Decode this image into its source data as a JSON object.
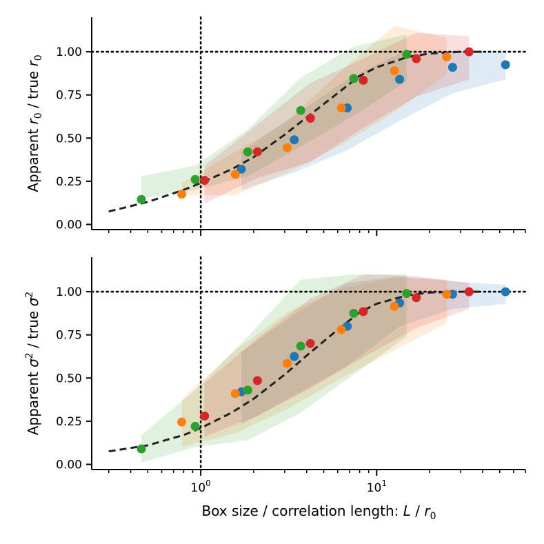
{
  "chart_data": [
    {
      "type": "scatter",
      "panel": "top",
      "xscale": "log",
      "xlim": [
        0.24,
        70
      ],
      "ylim": [
        -0.03,
        1.2
      ],
      "xlabel": "",
      "ylabel": "Apparent r₀ / true r₀",
      "ylabel_parts": {
        "pre": "Apparent ",
        "sym1": "r",
        "sub1": "0",
        "mid": " / true ",
        "sym2": "r",
        "sub2": "0"
      },
      "yticks": [
        0.0,
        0.25,
        0.5,
        0.75,
        1.0
      ],
      "ytick_labels": [
        "0.00",
        "0.25",
        "0.50",
        "0.75",
        "1.00"
      ],
      "reference_lines": {
        "vertical_x": 1.0,
        "horizontal_y": 1.0,
        "style": "dotted"
      },
      "fit_curve": {
        "style": "dashed",
        "color": "#222222",
        "points": [
          [
            0.3,
            0.075
          ],
          [
            0.5,
            0.13
          ],
          [
            0.8,
            0.2
          ],
          [
            1.0,
            0.24
          ],
          [
            1.5,
            0.32
          ],
          [
            2.0,
            0.39
          ],
          [
            3.0,
            0.52
          ],
          [
            4.0,
            0.62
          ],
          [
            6.0,
            0.76
          ],
          [
            8.0,
            0.86
          ],
          [
            10.0,
            0.91
          ],
          [
            15.0,
            0.97
          ],
          [
            20.0,
            0.99
          ],
          [
            30.0,
            1.0
          ],
          [
            40.0,
            1.0
          ]
        ]
      },
      "series": [
        {
          "name": "blue",
          "color": "#1f77b4",
          "x": [
            1.7,
            3.4,
            6.8,
            13.5,
            27.0,
            54.0
          ],
          "y": [
            0.32,
            0.49,
            0.675,
            0.84,
            0.91,
            0.925
          ],
          "band": {
            "x": [
              1.7,
              3.4,
              6.8,
              13.5,
              27.0,
              54.0
            ],
            "low": [
              0.2,
              0.3,
              0.43,
              0.6,
              0.76,
              0.84
            ],
            "high": [
              0.42,
              0.63,
              0.84,
              0.99,
              1.0,
              1.0
            ]
          }
        },
        {
          "name": "orange",
          "color": "#ff7f0e",
          "x": [
            0.78,
            1.57,
            3.1,
            6.3,
            12.6,
            25.0
          ],
          "y": [
            0.175,
            0.29,
            0.445,
            0.675,
            0.89,
            0.97
          ],
          "band": {
            "x": [
              0.78,
              1.57,
              3.1,
              6.3,
              12.6,
              25.0
            ],
            "low": [
              0.17,
              0.17,
              0.3,
              0.46,
              0.65,
              0.87
            ],
            "high": [
              0.24,
              0.42,
              0.6,
              0.89,
              1.15,
              1.08
            ]
          }
        },
        {
          "name": "green",
          "color": "#2ca02c",
          "x": [
            0.46,
            0.93,
            1.85,
            3.7,
            7.4,
            14.8
          ],
          "y": [
            0.145,
            0.26,
            0.42,
            0.66,
            0.845,
            0.985
          ],
          "band": {
            "x": [
              0.46,
              0.93,
              1.85,
              3.7,
              7.4,
              14.8
            ],
            "low": [
              0.15,
              0.2,
              0.28,
              0.45,
              0.63,
              0.83
            ],
            "high": [
              0.28,
              0.34,
              0.55,
              0.85,
              1.03,
              1.1
            ]
          }
        },
        {
          "name": "red",
          "color": "#d62728",
          "x": [
            1.05,
            2.1,
            4.2,
            8.4,
            16.8,
            33.5
          ],
          "y": [
            0.255,
            0.42,
            0.615,
            0.835,
            0.96,
            1.0
          ],
          "band": {
            "x": [
              1.05,
              2.1,
              4.2,
              8.4,
              16.8,
              33.5
            ],
            "low": [
              0.12,
              0.27,
              0.36,
              0.56,
              0.74,
              0.84
            ],
            "high": [
              0.34,
              0.58,
              0.82,
              0.96,
              1.11,
              1.09
            ]
          }
        }
      ]
    },
    {
      "type": "scatter",
      "panel": "bottom",
      "xscale": "log",
      "xlim": [
        0.24,
        70
      ],
      "ylim": [
        -0.03,
        1.2
      ],
      "xlabel": "Box size / correlation length: L / r₀",
      "xlabel_parts": {
        "pre": "Box size / correlation length: ",
        "sym1": "L",
        "mid": " / ",
        "sym2": "r",
        "sub2": "0"
      },
      "ylabel": "Apparent σ² / true σ²",
      "ylabel_parts": {
        "pre": "Apparent ",
        "sym1": "σ",
        "sup1": "2",
        "mid": " / true ",
        "sym2": "σ",
        "sup2": "2"
      },
      "xticks": [
        1,
        10
      ],
      "xtick_labels": [
        {
          "base": "10",
          "exp": "0"
        },
        {
          "base": "10",
          "exp": "1"
        }
      ],
      "yticks": [
        0.0,
        0.25,
        0.5,
        0.75,
        1.0
      ],
      "ytick_labels": [
        "0.00",
        "0.25",
        "0.50",
        "0.75",
        "1.00"
      ],
      "reference_lines": {
        "vertical_x": 1.0,
        "horizontal_y": 1.0,
        "style": "dotted"
      },
      "fit_curve": {
        "style": "dashed",
        "color": "#222222",
        "points": [
          [
            0.3,
            0.075
          ],
          [
            0.5,
            0.11
          ],
          [
            0.8,
            0.17
          ],
          [
            1.0,
            0.21
          ],
          [
            1.5,
            0.3
          ],
          [
            2.0,
            0.38
          ],
          [
            3.0,
            0.52
          ],
          [
            4.0,
            0.63
          ],
          [
            6.0,
            0.78
          ],
          [
            8.0,
            0.88
          ],
          [
            10.0,
            0.93
          ],
          [
            15.0,
            0.98
          ],
          [
            20.0,
            0.995
          ],
          [
            30.0,
            1.0
          ],
          [
            40.0,
            1.0
          ]
        ]
      },
      "series": [
        {
          "name": "blue",
          "color": "#1f77b4",
          "x": [
            1.7,
            3.4,
            6.8,
            13.5,
            27.0,
            54.0
          ],
          "y": [
            0.42,
            0.625,
            0.8,
            0.935,
            0.985,
            1.0
          ],
          "band": {
            "x": [
              1.7,
              3.4,
              6.8,
              13.5,
              27.0,
              54.0
            ],
            "low": [
              0.23,
              0.4,
              0.57,
              0.8,
              0.9,
              0.93
            ],
            "high": [
              0.65,
              0.87,
              1.05,
              1.09,
              1.06,
              1.04
            ]
          }
        },
        {
          "name": "orange",
          "color": "#ff7f0e",
          "x": [
            0.78,
            1.57,
            3.1,
            6.3,
            12.6,
            25.0
          ],
          "y": [
            0.245,
            0.41,
            0.585,
            0.78,
            0.915,
            0.985
          ],
          "band": {
            "x": [
              0.78,
              1.57,
              3.1,
              6.3,
              12.6,
              25.0
            ],
            "low": [
              0.1,
              0.18,
              0.32,
              0.5,
              0.66,
              0.82
            ],
            "high": [
              0.38,
              0.66,
              0.88,
              1.02,
              1.08,
              1.07
            ]
          }
        },
        {
          "name": "green",
          "color": "#2ca02c",
          "x": [
            0.46,
            0.93,
            1.85,
            3.7,
            7.4,
            14.8
          ],
          "y": [
            0.09,
            0.22,
            0.43,
            0.685,
            0.875,
            0.99
          ],
          "band": {
            "x": [
              0.46,
              0.93,
              1.85,
              3.7,
              7.4,
              14.8
            ],
            "low": [
              0.01,
              0.1,
              0.14,
              0.3,
              0.52,
              0.74
            ],
            "high": [
              0.17,
              0.43,
              0.74,
              1.07,
              1.1,
              1.1
            ]
          }
        },
        {
          "name": "red",
          "color": "#d62728",
          "x": [
            1.05,
            2.1,
            4.2,
            8.4,
            16.8,
            33.5
          ],
          "y": [
            0.28,
            0.485,
            0.7,
            0.885,
            0.965,
            1.0
          ],
          "band": {
            "x": [
              1.05,
              2.1,
              4.2,
              8.4,
              16.8,
              33.5
            ],
            "low": [
              0.16,
              0.28,
              0.44,
              0.62,
              0.79,
              0.9
            ],
            "high": [
              0.47,
              0.73,
              0.96,
              1.1,
              1.09,
              1.05
            ]
          }
        }
      ]
    }
  ]
}
